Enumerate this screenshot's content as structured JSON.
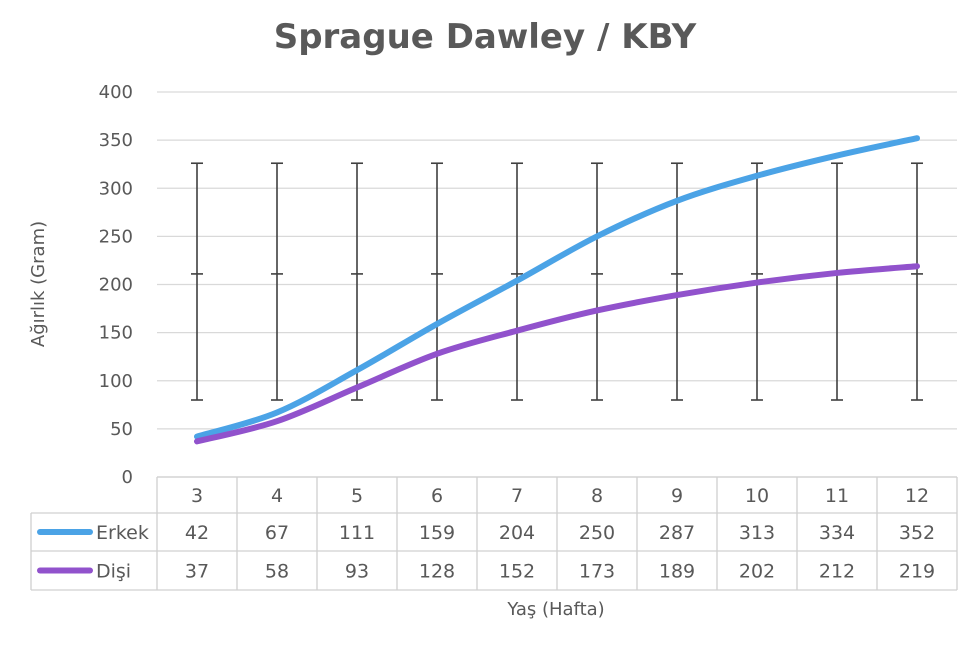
{
  "chart_data": {
    "type": "line",
    "title": "Sprague Dawley / KBY",
    "xlabel": "Yaş (Hafta)",
    "ylabel": "Ağırlık (Gram)",
    "categories": [
      "3",
      "4",
      "5",
      "6",
      "7",
      "8",
      "9",
      "10",
      "11",
      "12"
    ],
    "ylim": [
      0,
      400
    ],
    "yticks": [
      0,
      50,
      100,
      150,
      200,
      250,
      300,
      350,
      400
    ],
    "grid": true,
    "legend": "data-table",
    "series": [
      {
        "name": "Erkek",
        "color": "#4ba3e6",
        "values": [
          42,
          67,
          111,
          159,
          204,
          250,
          287,
          313,
          334,
          352
        ]
      },
      {
        "name": "Dişi",
        "color": "#9152cc",
        "values": [
          37,
          58,
          93,
          128,
          152,
          173,
          189,
          202,
          212,
          219
        ]
      }
    ],
    "error_bars": {
      "color": "#404040",
      "points": [
        {
          "low": 80,
          "mid": 211,
          "high": 326
        },
        {
          "low": 80,
          "mid": 211,
          "high": 326
        },
        {
          "low": 80,
          "mid": 211,
          "high": 326
        },
        {
          "low": 80,
          "mid": 211,
          "high": 326
        },
        {
          "low": 80,
          "mid": 211,
          "high": 326
        },
        {
          "low": 80,
          "mid": 211,
          "high": 326
        },
        {
          "low": 80,
          "mid": 211,
          "high": 326
        },
        {
          "low": 80,
          "mid": 211,
          "high": 326
        },
        {
          "low": 80,
          "mid": 211,
          "high": 326
        },
        {
          "low": 80,
          "mid": 211,
          "high": 326
        }
      ]
    }
  }
}
